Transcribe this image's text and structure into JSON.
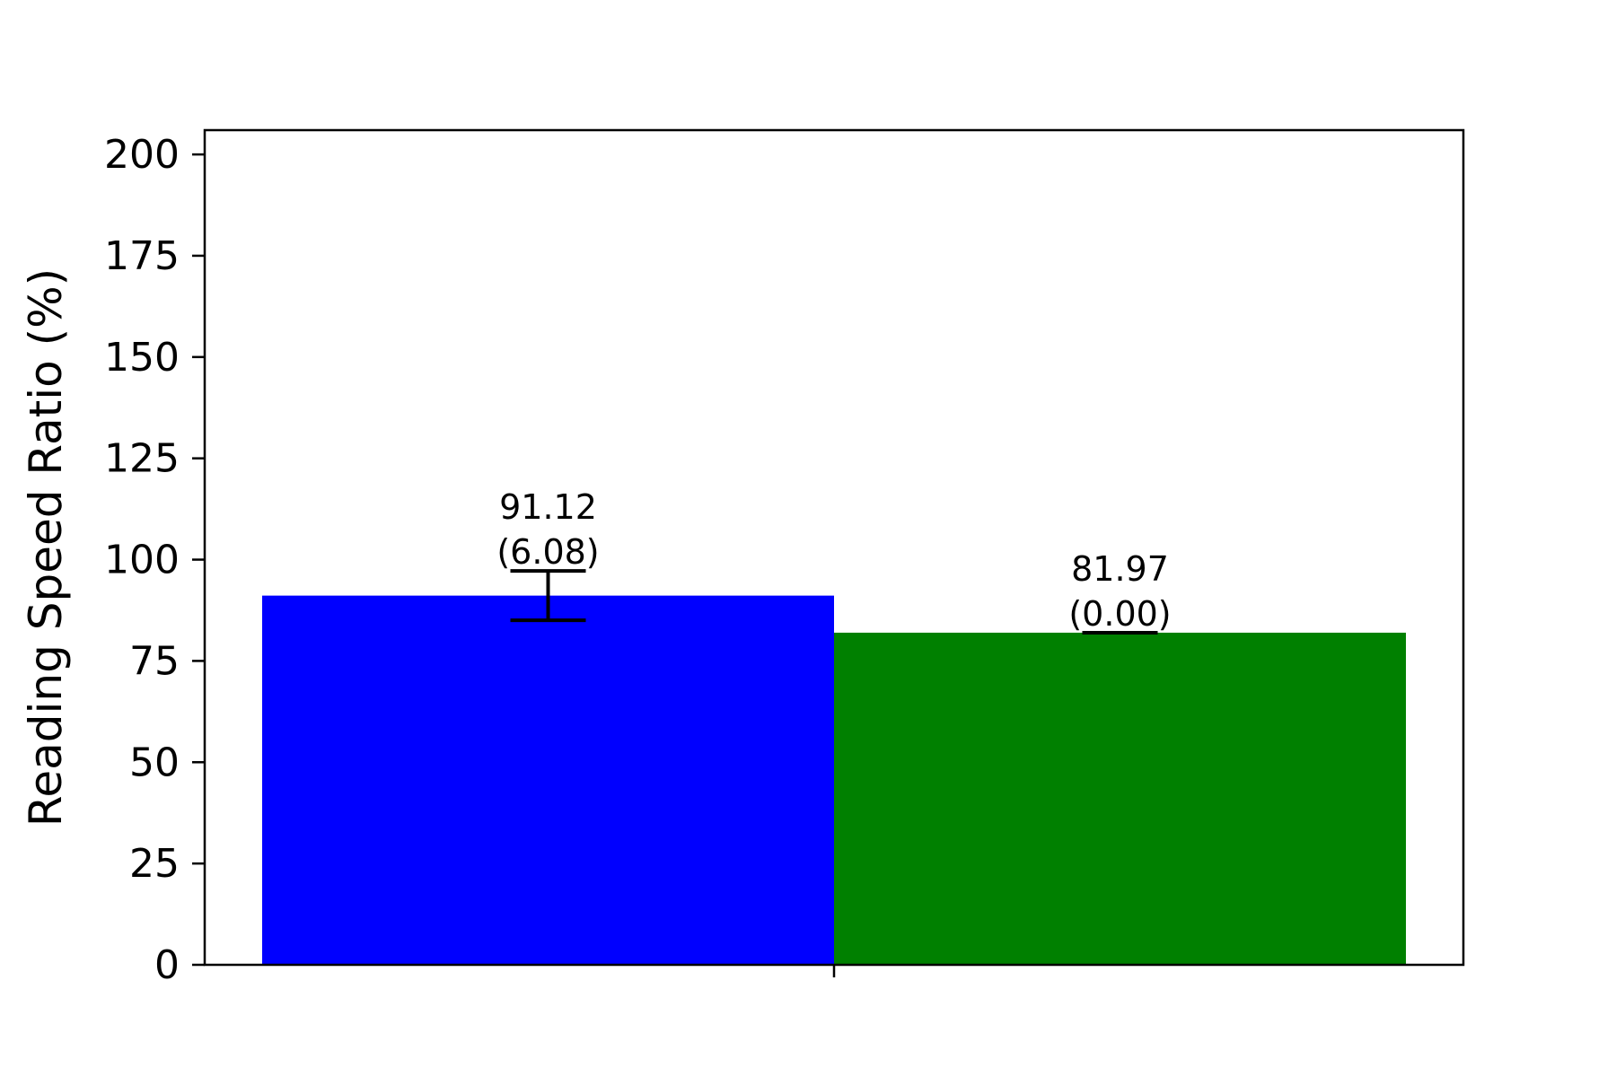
{
  "chart_data": {
    "type": "bar",
    "title": "",
    "xlabel": "",
    "ylabel": "Reading Speed Ratio (%)",
    "ylim": [
      0,
      206
    ],
    "yticks": [
      0,
      25,
      50,
      75,
      100,
      125,
      150,
      175,
      200
    ],
    "grid": false,
    "legend": "none",
    "bars": [
      {
        "value": 91.12,
        "error": 6.08,
        "color": "#0000ff",
        "value_label": "91.12",
        "error_label": "(6.08)"
      },
      {
        "value": 81.97,
        "error": 0.0,
        "color": "#008000",
        "value_label": "81.97",
        "error_label": "(0.00)"
      }
    ]
  }
}
